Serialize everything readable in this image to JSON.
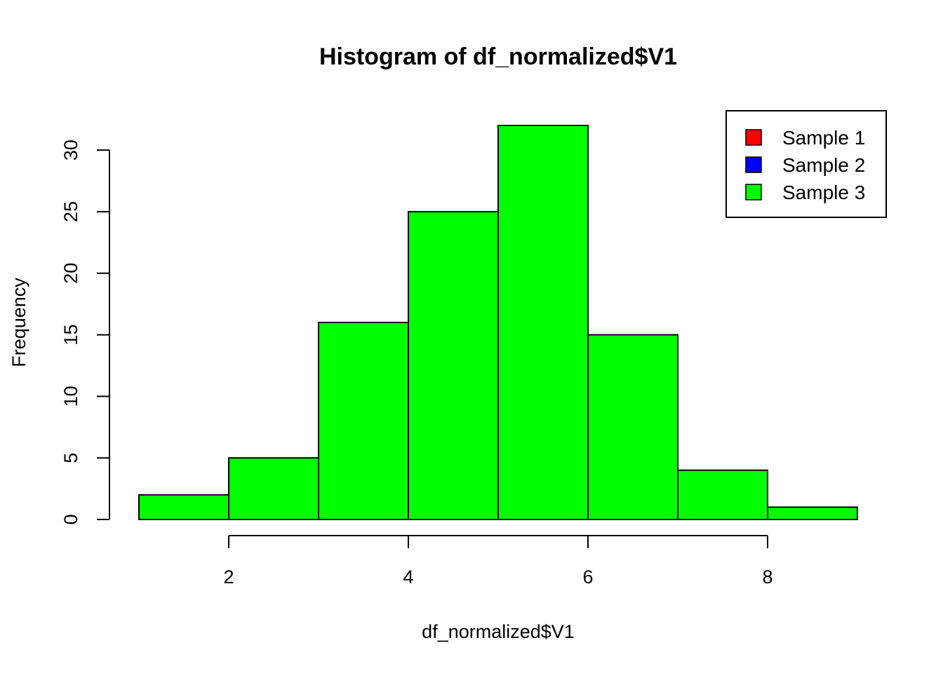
{
  "chart_data": {
    "type": "bar",
    "title": "Histogram of df_normalized$V1",
    "xlabel": "df_normalized$V1",
    "ylabel": "Frequency",
    "bins": [
      {
        "start": 1,
        "end": 2,
        "count": 2
      },
      {
        "start": 2,
        "end": 3,
        "count": 5
      },
      {
        "start": 3,
        "end": 4,
        "count": 16
      },
      {
        "start": 4,
        "end": 5,
        "count": 25
      },
      {
        "start": 5,
        "end": 6,
        "count": 32
      },
      {
        "start": 6,
        "end": 7,
        "count": 15
      },
      {
        "start": 7,
        "end": 8,
        "count": 4
      },
      {
        "start": 8,
        "end": 9,
        "count": 1
      }
    ],
    "bar_color": "#00ff00",
    "xlim": [
      1,
      9
    ],
    "ylim": [
      0,
      32
    ],
    "x_ticks": [
      2,
      4,
      6,
      8
    ],
    "y_ticks": [
      0,
      5,
      10,
      15,
      20,
      25,
      30
    ],
    "grid": false,
    "legend": {
      "placement": "top-right",
      "entries": [
        {
          "label": "Sample 1",
          "color": "#ff0000"
        },
        {
          "label": "Sample 2",
          "color": "#0000ff"
        },
        {
          "label": "Sample 3",
          "color": "#00ff00"
        }
      ]
    }
  }
}
